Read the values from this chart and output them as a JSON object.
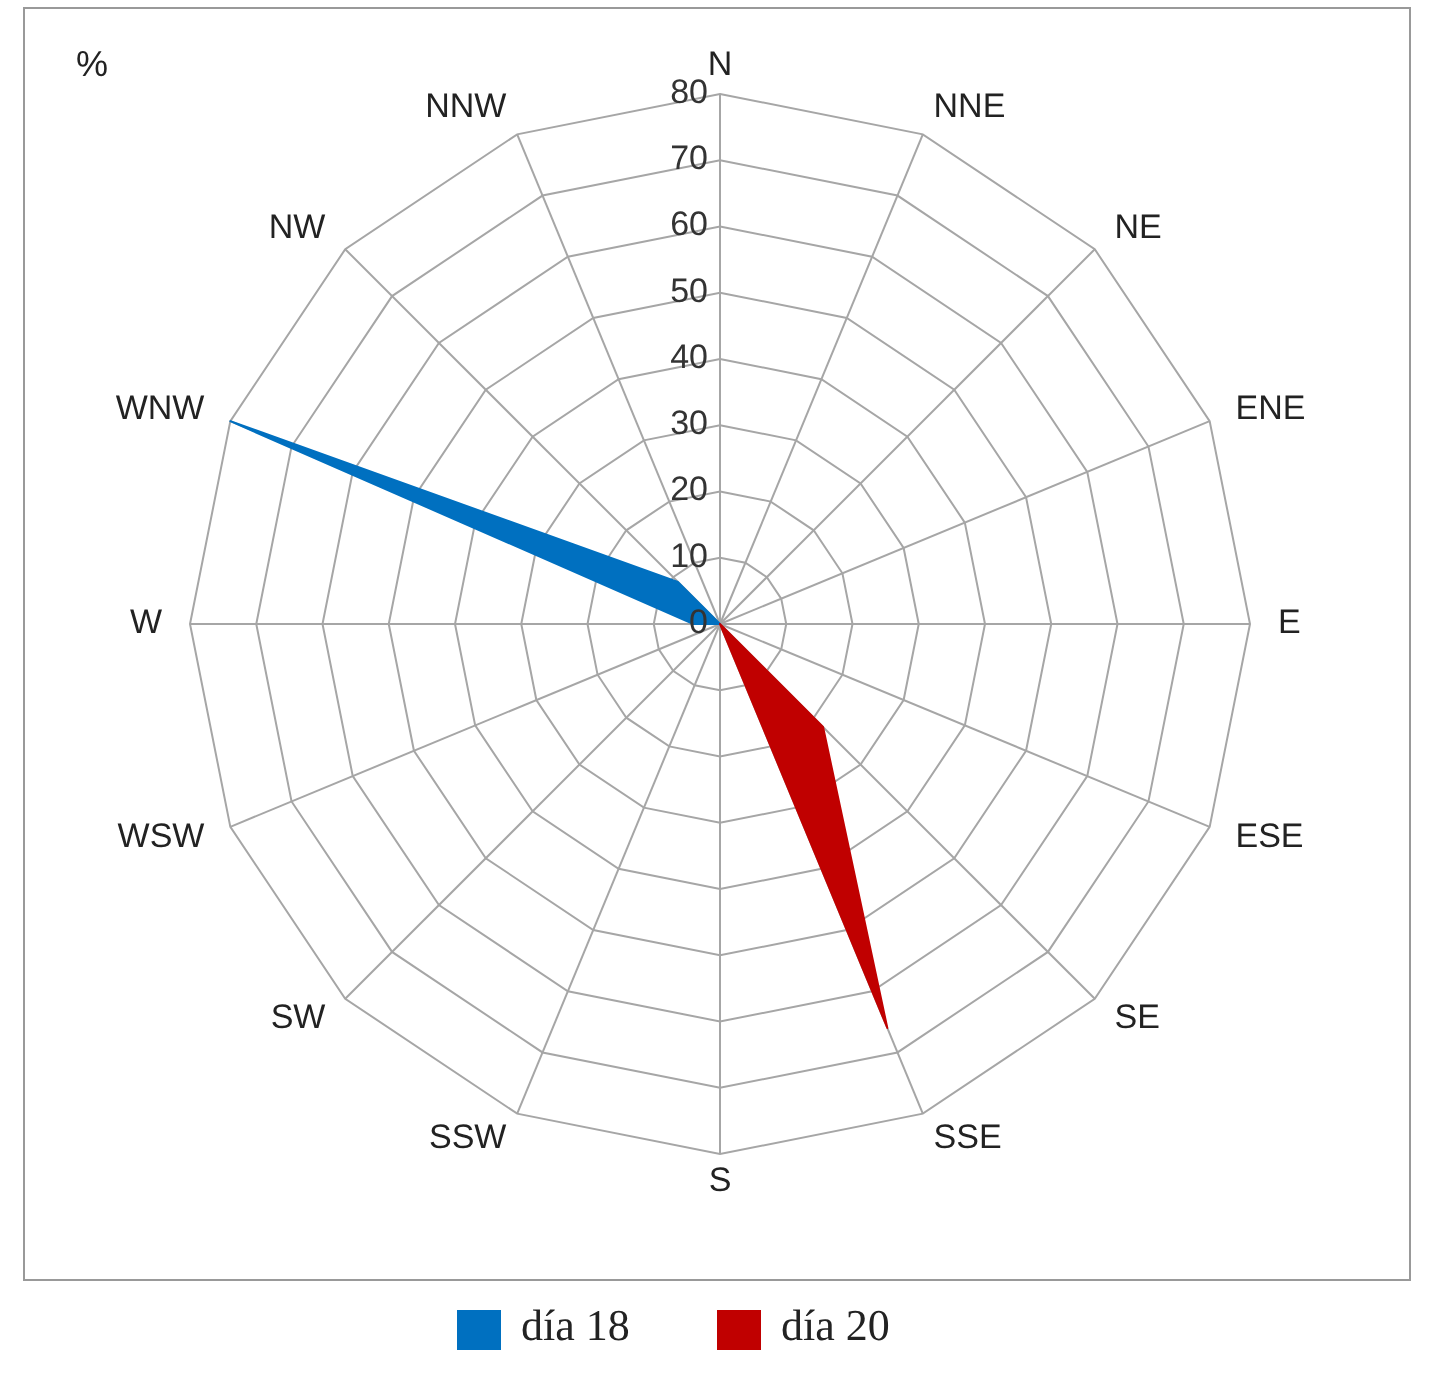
{
  "chart_data": {
    "type": "radar",
    "ylabel": "%",
    "categories": [
      "N",
      "NNE",
      "NE",
      "ENE",
      "E",
      "ESE",
      "SE",
      "SSE",
      "S",
      "SSW",
      "SW",
      "WSW",
      "W",
      "WNW",
      "NW",
      "NNW"
    ],
    "series": [
      {
        "name": "día 18",
        "color": "#0070c0",
        "values": [
          0,
          0,
          0,
          0,
          0,
          0,
          0,
          0,
          0,
          0,
          0,
          0,
          4,
          80,
          9,
          0
        ]
      },
      {
        "name": "día 20",
        "color": "#c00000",
        "values": [
          0,
          0,
          0,
          0,
          0,
          0,
          22,
          66,
          0,
          0,
          0,
          0,
          0,
          0,
          0,
          0
        ]
      }
    ],
    "ylim": [
      0,
      80
    ],
    "yticks": [
      0,
      10,
      20,
      30,
      40,
      50,
      60,
      70,
      80
    ],
    "grid": true,
    "legend": "bottom"
  }
}
